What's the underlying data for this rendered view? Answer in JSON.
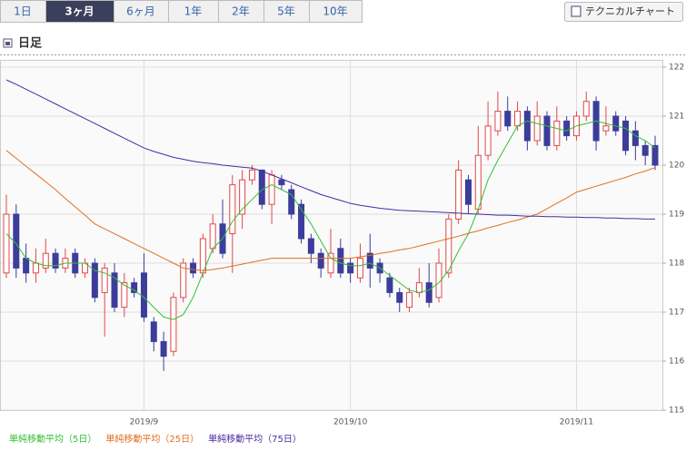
{
  "ui": {
    "tabs": [
      "1日",
      "3ヶ月",
      "6ヶ月",
      "1年",
      "2年",
      "5年",
      "10年"
    ],
    "active_tab": 1,
    "technical_button": "テクニカルチャート",
    "section_title": "日足"
  },
  "chart_data": {
    "type": "candlestick",
    "categories": [
      null,
      null,
      null,
      null,
      null,
      null,
      null,
      null,
      null,
      null,
      null,
      null,
      null,
      null,
      "2019/9",
      null,
      null,
      null,
      null,
      null,
      null,
      null,
      null,
      null,
      null,
      null,
      null,
      null,
      null,
      null,
      null,
      null,
      null,
      null,
      null,
      "2019/10",
      null,
      null,
      null,
      null,
      null,
      null,
      null,
      null,
      null,
      null,
      null,
      null,
      null,
      null,
      null,
      null,
      null,
      null,
      null,
      null,
      null,
      null,
      "2019/11",
      null,
      null,
      null,
      null,
      null,
      null,
      null,
      null
    ],
    "open": [
      117.8,
      119.0,
      118.1,
      117.8,
      117.9,
      118.2,
      117.9,
      118.2,
      117.8,
      118.0,
      117.4,
      117.8,
      117.1,
      117.6,
      117.8,
      116.8,
      116.4,
      116.2,
      117.3,
      118.0,
      117.8,
      118.3,
      118.8,
      118.6,
      119.0,
      119.7,
      119.9,
      119.2,
      119.7,
      119.5,
      119.2,
      118.5,
      118.2,
      117.8,
      118.3,
      118.0,
      117.7,
      118.2,
      118.0,
      117.7,
      117.4,
      117.1,
      117.4,
      117.6,
      117.3,
      117.8,
      118.9,
      119.7,
      119.1,
      120.2,
      120.7,
      121.1,
      120.8,
      121.1,
      120.5,
      121.0,
      120.4,
      120.9,
      120.6,
      121.0,
      121.3,
      120.7,
      121.0,
      120.9,
      120.7,
      120.4,
      120.4
    ],
    "high": [
      119.4,
      119.2,
      118.4,
      118.3,
      118.5,
      118.3,
      118.3,
      118.3,
      118.1,
      118.1,
      118.0,
      118.0,
      117.8,
      117.7,
      118.2,
      116.9,
      116.6,
      117.4,
      118.1,
      118.1,
      118.6,
      119.0,
      119.3,
      119.8,
      119.9,
      120.0,
      119.9,
      119.9,
      119.8,
      119.6,
      119.3,
      118.6,
      118.3,
      118.7,
      118.5,
      118.1,
      118.4,
      118.6,
      118.1,
      117.8,
      117.5,
      117.5,
      117.9,
      118.0,
      118.3,
      119.0,
      120.1,
      119.8,
      120.8,
      121.3,
      121.5,
      121.4,
      121.3,
      121.2,
      121.3,
      121.1,
      121.2,
      121.0,
      121.1,
      121.5,
      121.4,
      121.2,
      121.1,
      121.0,
      120.9,
      120.5,
      120.6
    ],
    "low": [
      117.7,
      117.7,
      117.6,
      117.6,
      117.8,
      117.8,
      117.8,
      117.7,
      117.7,
      117.2,
      116.5,
      117.0,
      116.9,
      117.3,
      116.8,
      116.2,
      115.8,
      116.1,
      117.2,
      117.7,
      117.7,
      118.2,
      118.1,
      117.8,
      118.7,
      119.6,
      119.1,
      118.8,
      119.5,
      118.9,
      118.4,
      118.0,
      117.7,
      117.7,
      117.7,
      117.6,
      117.6,
      117.5,
      117.6,
      117.3,
      117.0,
      117.0,
      117.3,
      117.1,
      117.2,
      117.7,
      118.8,
      119.0,
      119.0,
      120.1,
      120.6,
      120.7,
      120.7,
      120.3,
      120.4,
      120.3,
      120.3,
      120.5,
      120.5,
      120.9,
      120.3,
      120.6,
      120.6,
      120.2,
      120.1,
      120.0,
      119.9
    ],
    "close": [
      119.0,
      117.9,
      117.8,
      118.0,
      118.2,
      117.9,
      118.1,
      117.8,
      118.0,
      117.3,
      117.9,
      117.1,
      117.6,
      117.4,
      116.9,
      116.4,
      116.1,
      117.3,
      118.0,
      117.8,
      118.5,
      118.8,
      118.2,
      119.6,
      119.7,
      119.9,
      119.2,
      119.8,
      119.6,
      119.0,
      118.5,
      118.2,
      117.9,
      118.2,
      117.8,
      117.8,
      118.1,
      117.9,
      117.8,
      117.4,
      117.2,
      117.4,
      117.6,
      117.2,
      118.0,
      118.9,
      119.9,
      119.2,
      120.2,
      120.8,
      121.1,
      120.8,
      121.1,
      120.5,
      121.0,
      120.4,
      120.9,
      120.6,
      121.0,
      121.3,
      120.5,
      120.8,
      120.7,
      120.3,
      120.4,
      120.2,
      120.0
    ],
    "up_color": "#e04848",
    "down_color": "#3c3c9c",
    "series": [
      {
        "name": "単純移動平均（5日）",
        "color": "#33c033",
        "values": [
          118.6,
          118.4,
          118.1,
          118.0,
          117.95,
          117.95,
          118.0,
          118.0,
          118.0,
          117.85,
          117.8,
          117.7,
          117.55,
          117.45,
          117.3,
          117.1,
          116.9,
          116.85,
          116.95,
          117.3,
          117.8,
          118.3,
          118.5,
          118.85,
          119.1,
          119.3,
          119.5,
          119.6,
          119.5,
          119.4,
          119.1,
          118.8,
          118.45,
          118.1,
          118.0,
          117.95,
          117.95,
          118.0,
          117.9,
          117.75,
          117.6,
          117.45,
          117.4,
          117.45,
          117.6,
          117.85,
          118.25,
          118.6,
          119.1,
          119.7,
          120.1,
          120.45,
          120.8,
          120.9,
          120.85,
          120.8,
          120.75,
          120.7,
          120.8,
          120.85,
          120.9,
          120.85,
          120.8,
          120.75,
          120.6,
          120.5,
          120.35
        ]
      },
      {
        "name": "単純移動平均（25日）",
        "color": "#e07020",
        "values": [
          120.3,
          120.14,
          119.98,
          119.82,
          119.66,
          119.5,
          119.32,
          119.15,
          118.98,
          118.8,
          118.7,
          118.6,
          118.5,
          118.4,
          118.3,
          118.2,
          118.1,
          118.0,
          117.9,
          117.87,
          117.85,
          117.87,
          117.9,
          117.94,
          117.98,
          118.02,
          118.06,
          118.1,
          118.1,
          118.1,
          118.1,
          118.1,
          118.1,
          118.1,
          118.1,
          118.1,
          118.13,
          118.16,
          118.2,
          118.23,
          118.27,
          118.3,
          118.35,
          118.4,
          118.45,
          118.5,
          118.55,
          118.61,
          118.66,
          118.72,
          118.77,
          118.83,
          118.88,
          118.94,
          119.0,
          119.11,
          119.22,
          119.33,
          119.45,
          119.51,
          119.57,
          119.63,
          119.69,
          119.75,
          119.82,
          119.88,
          119.95
        ]
      },
      {
        "name": "単純移動平均（75日）",
        "color": "#4a2aa0",
        "values": [
          121.74,
          121.65,
          121.55,
          121.45,
          121.35,
          121.25,
          121.15,
          121.05,
          120.95,
          120.85,
          120.75,
          120.65,
          120.55,
          120.45,
          120.35,
          120.28,
          120.22,
          120.16,
          120.12,
          120.08,
          120.05,
          120.03,
          120.0,
          119.98,
          119.96,
          119.94,
          119.88,
          119.8,
          119.72,
          119.64,
          119.56,
          119.48,
          119.4,
          119.34,
          119.28,
          119.22,
          119.18,
          119.15,
          119.12,
          119.1,
          119.08,
          119.07,
          119.06,
          119.05,
          119.04,
          119.03,
          119.02,
          119.01,
          119.0,
          118.99,
          118.98,
          118.98,
          118.97,
          118.96,
          118.96,
          118.95,
          118.95,
          118.94,
          118.94,
          118.93,
          118.93,
          118.92,
          118.92,
          118.91,
          118.91,
          118.9,
          118.9
        ]
      }
    ],
    "ylim": [
      115,
      122
    ],
    "yticks": [
      115,
      116,
      117,
      118,
      119,
      120,
      121,
      122
    ],
    "grid": true
  }
}
